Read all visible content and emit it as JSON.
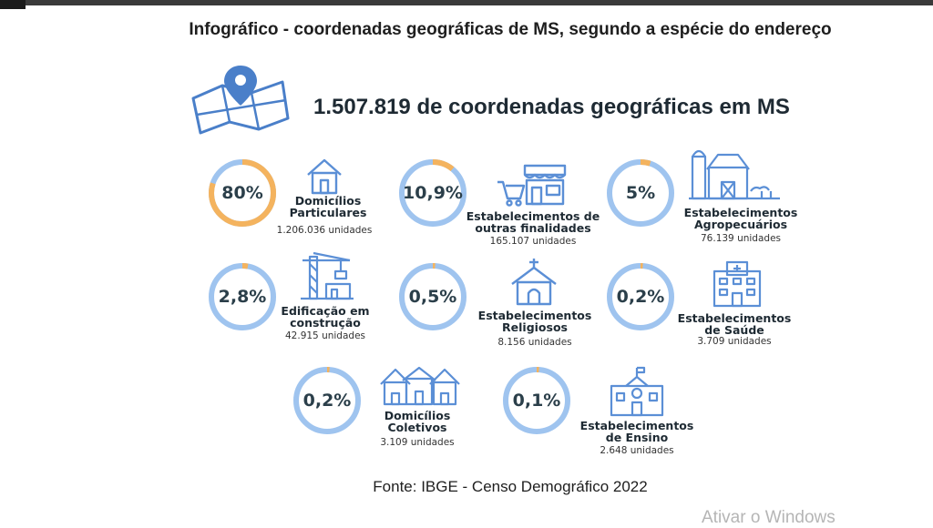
{
  "title": "Infográfico - coordenadas geográficas de MS, segundo a espécie do endereço",
  "headline": "1.507.819 de coordenadas geográficas em MS",
  "source": "Fonte: IBGE - Censo Demográfico 2022",
  "watermark": "Ativar o Windows",
  "colors": {
    "ring_track": "#9fc4ef",
    "ring_fill": "#f4b35e",
    "icon": "#5b8fd6",
    "text": "#1e2a33"
  },
  "chart_data": {
    "type": "pie",
    "title": "Infográfico - coordenadas geográficas de MS, segundo a espécie do endereço",
    "total": "1.507.819 de coordenadas geográficas em MS",
    "items": [
      {
        "pct_label": "80%",
        "value": 80,
        "label_lines": [
          "Domicílios",
          "Particulares"
        ],
        "units": "1.206.036 unidades",
        "icon": "house-icon"
      },
      {
        "pct_label": "10,9%",
        "value": 10.9,
        "label_lines": [
          "Estabelecimentos de",
          "outras finalidades"
        ],
        "units": "165.107 unidades",
        "icon": "store-cart-icon"
      },
      {
        "pct_label": "5%",
        "value": 5,
        "label_lines": [
          "Estabelecimentos",
          "Agropecuários"
        ],
        "units": "76.139 unidades",
        "icon": "farm-barn-icon"
      },
      {
        "pct_label": "2,8%",
        "value": 2.8,
        "label_lines": [
          "Edificação em",
          "construção"
        ],
        "units": "42.915 unidades",
        "icon": "construction-crane-icon"
      },
      {
        "pct_label": "0,5%",
        "value": 0.5,
        "label_lines": [
          "Estabelecimentos",
          "Religiosos"
        ],
        "units": "8.156 unidades",
        "icon": "church-icon"
      },
      {
        "pct_label": "0,2%",
        "value": 0.2,
        "label_lines": [
          "Estabelecimentos",
          "de Saúde"
        ],
        "units": "3.709 unidades",
        "icon": "hospital-icon"
      },
      {
        "pct_label": "0,2%",
        "value": 0.2,
        "label_lines": [
          "Domicílios",
          "Coletivos"
        ],
        "units": "3.109 unidades",
        "icon": "row-houses-icon"
      },
      {
        "pct_label": "0,1%",
        "value": 0.1,
        "label_lines": [
          "Estabelecimentos",
          "de Ensino"
        ],
        "units": "2.648 unidades",
        "icon": "school-icon"
      }
    ]
  }
}
